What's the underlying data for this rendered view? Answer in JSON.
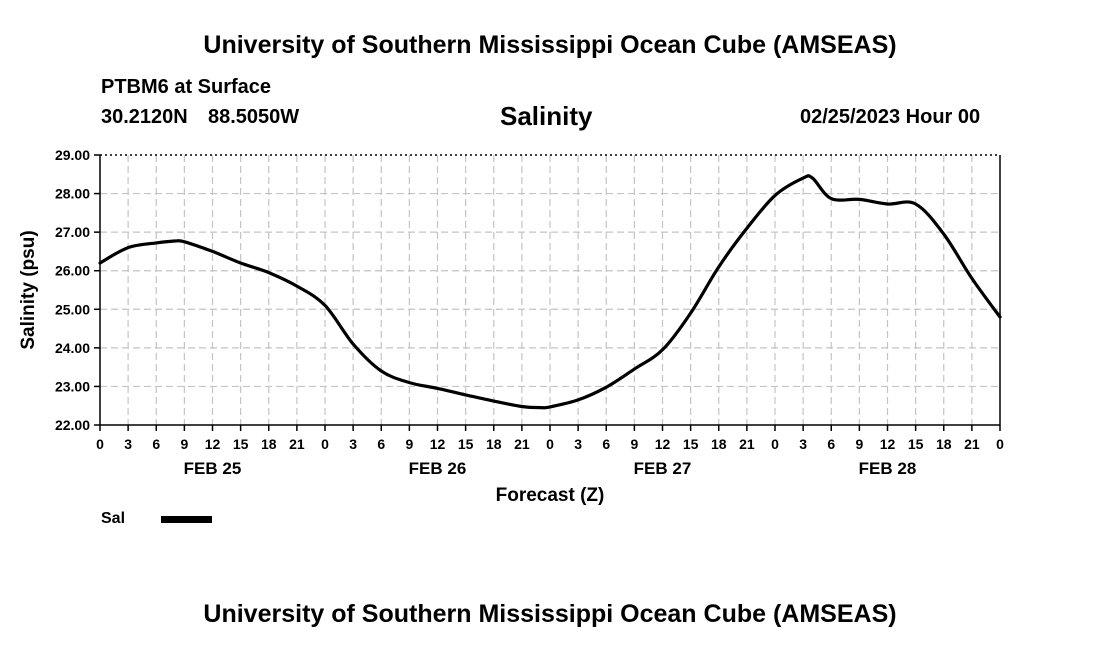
{
  "header": {
    "title": "University of Southern Mississippi Ocean Cube (AMSEAS)",
    "station": "PTBM6 at Surface",
    "latitude": "30.2120N",
    "longitude": "88.5050W",
    "datetime": "02/25/2023 Hour 00"
  },
  "footer": {
    "title": "University of Southern Mississippi Ocean Cube (AMSEAS)"
  },
  "chart_data": {
    "type": "line",
    "title": "Salinity",
    "xlabel": "Forecast (Z)",
    "ylabel": "Salinity (psu)",
    "ylim": [
      22.0,
      29.0
    ],
    "xlim_hours": [
      0,
      96
    ],
    "yticks": [
      "22.00",
      "23.00",
      "24.00",
      "25.00",
      "26.00",
      "27.00",
      "28.00",
      "29.00"
    ],
    "xtick_labels": [
      "0",
      "3",
      "6",
      "9",
      "12",
      "15",
      "18",
      "21",
      "0",
      "3",
      "6",
      "9",
      "12",
      "15",
      "18",
      "21",
      "0",
      "3",
      "6",
      "9",
      "12",
      "15",
      "18",
      "21",
      "0",
      "3",
      "6",
      "9",
      "12",
      "15",
      "18",
      "21",
      "0"
    ],
    "day_labels": [
      "FEB 25",
      "FEB 26",
      "FEB 27",
      "FEB 28"
    ],
    "grid": true,
    "series": [
      {
        "name": "Sal",
        "color": "#000000",
        "hours": [
          0,
          3,
          6,
          8,
          9,
          12,
          15,
          18,
          21,
          24,
          27,
          30,
          33,
          36,
          39,
          42,
          45,
          47,
          48,
          51,
          54,
          57,
          60,
          63,
          66,
          69,
          72,
          75,
          76,
          78,
          81,
          84,
          87,
          90,
          93,
          96
        ],
        "values": [
          26.2,
          26.6,
          26.72,
          26.77,
          26.75,
          26.5,
          26.2,
          25.95,
          25.6,
          25.1,
          24.1,
          23.4,
          23.1,
          22.95,
          22.78,
          22.62,
          22.48,
          22.45,
          22.47,
          22.65,
          22.98,
          23.45,
          23.95,
          24.9,
          26.1,
          27.1,
          27.95,
          28.4,
          28.4,
          27.87,
          27.85,
          27.73,
          27.73,
          26.95,
          25.8,
          24.8
        ]
      }
    ],
    "legend": "bottom-left"
  }
}
